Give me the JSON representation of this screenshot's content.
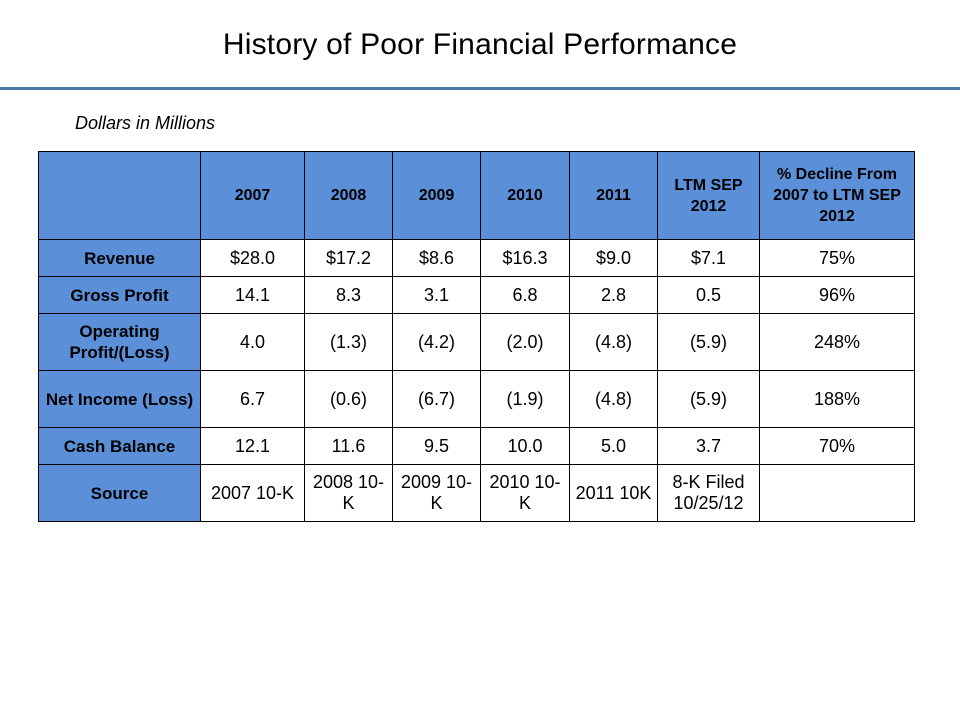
{
  "title": "History of Poor Financial Performance",
  "units_note": "Dollars in Millions",
  "table": {
    "headers": [
      "",
      "2007",
      "2008",
      "2009",
      "2010",
      "2011",
      "LTM SEP 2012",
      "% Decline From 2007 to LTM SEP 2012"
    ],
    "rows": [
      {
        "label": "Revenue",
        "cells": [
          "$28.0",
          "$17.2",
          "$8.6",
          "$16.3",
          "$9.0",
          "$7.1",
          "75%"
        ]
      },
      {
        "label": "Gross Profit",
        "cells": [
          "14.1",
          "8.3",
          "3.1",
          "6.8",
          "2.8",
          "0.5",
          "96%"
        ]
      },
      {
        "label": "Operating Profit/(Loss)",
        "cells": [
          "4.0",
          "(1.3)",
          "(4.2)",
          "(2.0)",
          "(4.8)",
          "(5.9)",
          "248%"
        ]
      },
      {
        "label": "Net Income (Loss)",
        "cells": [
          "6.7",
          "(0.6)",
          "(6.7)",
          "(1.9)",
          "(4.8)",
          "(5.9)",
          "188%"
        ]
      },
      {
        "label": "Cash Balance",
        "cells": [
          "12.1",
          "11.6",
          "9.5",
          "10.0",
          "5.0",
          "3.7",
          "70%"
        ]
      },
      {
        "label": "Source",
        "cells": [
          "2007 10-K",
          "2008 10-K",
          "2009 10-K",
          "2010 10-K",
          "2011 10K",
          "8-K Filed 10/25/12",
          ""
        ]
      }
    ]
  },
  "colors": {
    "header_fill": "#5b8fd8",
    "rule": "#4a7aa8"
  }
}
